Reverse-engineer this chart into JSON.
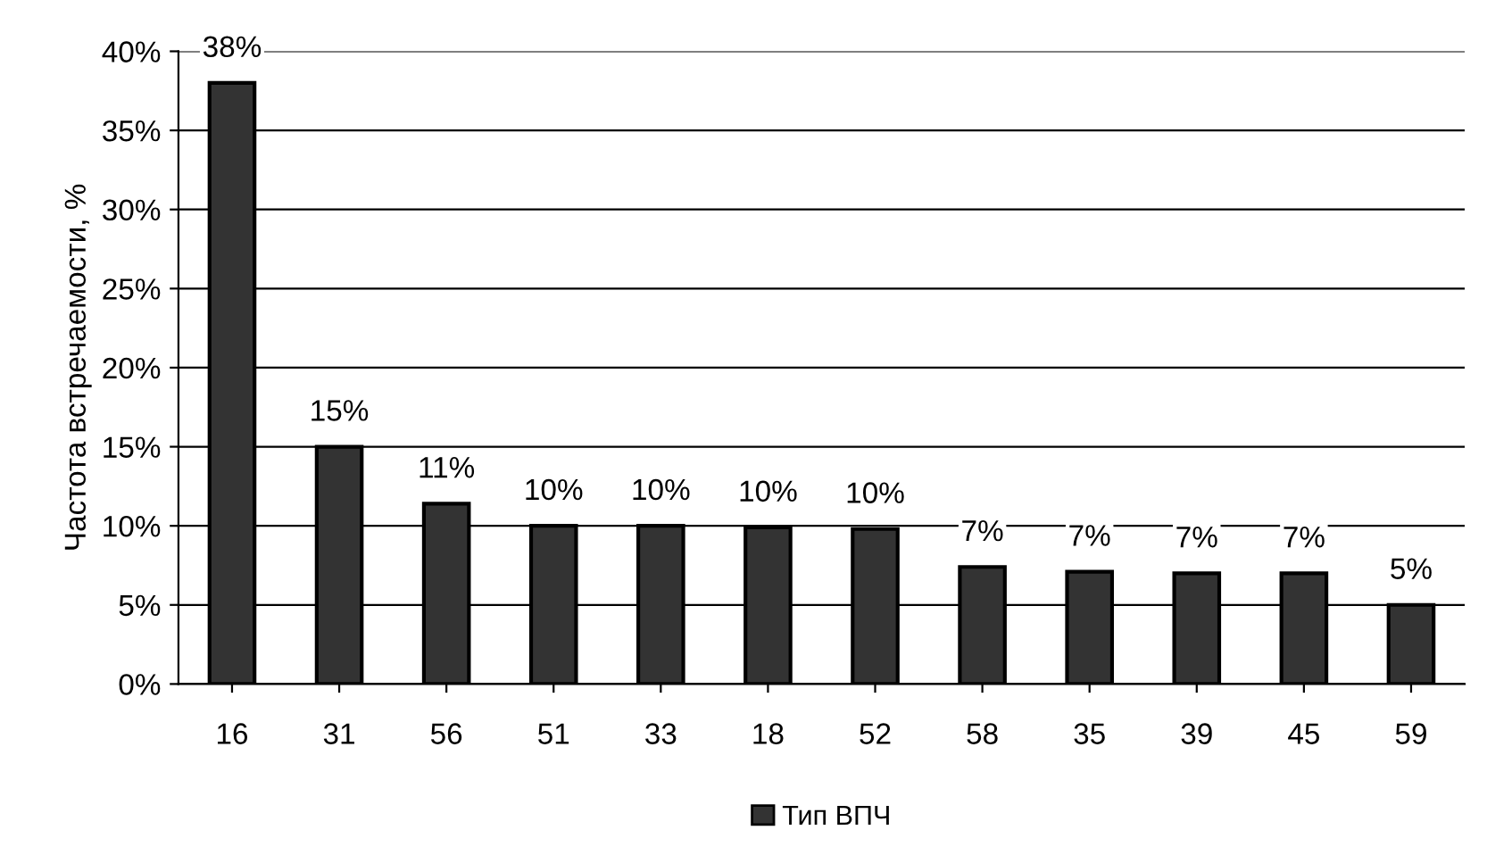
{
  "chart_data": {
    "type": "bar",
    "ylabel": "Частота встречаемости, %",
    "categories": [
      "16",
      "31",
      "56",
      "51",
      "33",
      "18",
      "52",
      "58",
      "35",
      "39",
      "45",
      "59"
    ],
    "series": [
      {
        "name": "Тип ВПЧ",
        "color": "#333333",
        "values": [
          38,
          15,
          11.4,
          10,
          10,
          9.9,
          9.8,
          7.4,
          7.1,
          7,
          7,
          5
        ],
        "value_labels": [
          "38%",
          "15%",
          "11%",
          "10%",
          "10%",
          "10%",
          "10%",
          "7%",
          "7%",
          "7%",
          "7%",
          "5%"
        ]
      }
    ],
    "ylim": [
      0,
      40
    ],
    "yticks": [
      {
        "value": 0,
        "label": "0%"
      },
      {
        "value": 5,
        "label": "5%"
      },
      {
        "value": 10,
        "label": "10%"
      },
      {
        "value": 15,
        "label": "15%"
      },
      {
        "value": 20,
        "label": "20%"
      },
      {
        "value": 25,
        "label": "25%"
      },
      {
        "value": 30,
        "label": "30%"
      },
      {
        "value": 35,
        "label": "35%"
      },
      {
        "value": 40,
        "label": "40%"
      }
    ],
    "grid": "y",
    "legend": "bottom"
  }
}
